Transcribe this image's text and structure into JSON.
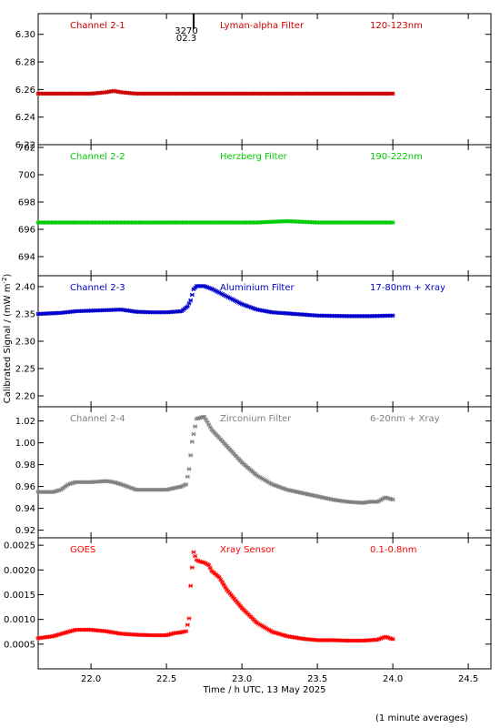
{
  "chart_data": [
    {
      "type": "scatter",
      "labels": {
        "channel": "Channel 2-1",
        "filter": "Lyman-alpha Filter",
        "range": "120-123nm"
      },
      "color": "#cc0000",
      "ylim": [
        6.22,
        6.315
      ],
      "yticks": [
        "6.22",
        "6.24",
        "6.26",
        "6.28",
        "6.30"
      ],
      "annotation": {
        "x": 22.68,
        "line1": "3270",
        "line2": "02.3"
      },
      "series": [
        {
          "x": [
            21.65,
            21.8,
            22.0,
            22.1,
            22.15,
            22.2,
            22.3,
            22.5,
            22.7,
            22.9,
            23.1,
            23.3,
            23.5,
            23.7,
            23.85,
            24.0
          ],
          "values": [
            6.257,
            6.257,
            6.257,
            6.258,
            6.259,
            6.258,
            6.257,
            6.257,
            6.257,
            6.257,
            6.257,
            6.257,
            6.257,
            6.257,
            6.257,
            6.257
          ]
        }
      ]
    },
    {
      "type": "scatter",
      "labels": {
        "channel": "Channel 2-2",
        "filter": "Herzberg Filter",
        "range": "190-222nm"
      },
      "color": "#00cc00",
      "ylim": [
        692.6,
        702.2
      ],
      "yticks": [
        "694",
        "696",
        "698",
        "700",
        "702"
      ],
      "series": [
        {
          "x": [
            21.65,
            21.9,
            22.2,
            22.5,
            22.7,
            22.9,
            23.1,
            23.3,
            23.5,
            23.7,
            23.85,
            24.0
          ],
          "values": [
            696.5,
            696.5,
            696.5,
            696.5,
            696.5,
            696.5,
            696.5,
            696.6,
            696.5,
            696.5,
            696.5,
            696.5
          ]
        }
      ]
    },
    {
      "type": "scatter",
      "labels": {
        "channel": "Channel 2-3",
        "filter": "Aluminium Filter",
        "range": "17-80nm + Xray"
      },
      "color": "#0000cc",
      "ylim": [
        2.18,
        2.42
      ],
      "yticks": [
        "2.20",
        "2.25",
        "2.30",
        "2.35",
        "2.40"
      ],
      "series": [
        {
          "x": [
            21.65,
            21.8,
            21.9,
            22.0,
            22.1,
            22.2,
            22.3,
            22.4,
            22.5,
            22.6,
            22.64,
            22.66,
            22.68,
            22.7,
            22.75,
            22.8,
            22.9,
            23.0,
            23.1,
            23.2,
            23.3,
            23.5,
            23.7,
            23.85,
            24.0
          ],
          "values": [
            2.35,
            2.352,
            2.355,
            2.356,
            2.357,
            2.358,
            2.354,
            2.353,
            2.353,
            2.355,
            2.364,
            2.375,
            2.395,
            2.401,
            2.401,
            2.396,
            2.382,
            2.368,
            2.358,
            2.353,
            2.351,
            2.347,
            2.346,
            2.346,
            2.347
          ]
        }
      ]
    },
    {
      "type": "scatter",
      "labels": {
        "channel": "Channel 2-4",
        "filter": "Zirconium Filter",
        "range": "6-20nm + Xray"
      },
      "color": "#808080",
      "ylim": [
        0.913,
        1.033
      ],
      "yticks": [
        "0.92",
        "0.94",
        "0.96",
        "0.98",
        "1.00",
        "1.02"
      ],
      "series": [
        {
          "x": [
            21.65,
            21.75,
            21.8,
            21.85,
            21.9,
            22.0,
            22.1,
            22.15,
            22.2,
            22.3,
            22.4,
            22.5,
            22.6,
            22.63,
            22.65,
            22.67,
            22.7,
            22.75,
            22.8,
            22.9,
            23.0,
            23.1,
            23.2,
            23.3,
            23.5,
            23.6,
            23.7,
            23.8,
            23.85,
            23.9,
            23.95,
            24.0
          ],
          "values": [
            0.955,
            0.955,
            0.957,
            0.962,
            0.964,
            0.964,
            0.965,
            0.964,
            0.962,
            0.957,
            0.957,
            0.957,
            0.96,
            0.962,
            0.976,
            1.001,
            1.022,
            1.024,
            1.012,
            0.997,
            0.982,
            0.97,
            0.962,
            0.957,
            0.951,
            0.948,
            0.946,
            0.945,
            0.946,
            0.946,
            0.95,
            0.948
          ]
        }
      ]
    },
    {
      "type": "scatter",
      "labels": {
        "channel": "GOES",
        "filter": "Xray Sensor",
        "range": "0.1-0.8nm"
      },
      "color": "#ff0000",
      "ylim": [
        0.0,
        0.00265
      ],
      "yticks": [
        "0.0005",
        "0.0010",
        "0.0015",
        "0.0020",
        "0.0025"
      ],
      "series": [
        {
          "x": [
            21.65,
            21.75,
            21.85,
            21.9,
            22.0,
            22.1,
            22.2,
            22.3,
            22.4,
            22.5,
            22.55,
            22.6,
            22.63,
            22.65,
            22.66,
            22.67,
            22.68,
            22.7,
            22.72,
            22.75,
            22.78,
            22.8,
            22.85,
            22.9,
            23.0,
            23.1,
            23.2,
            23.3,
            23.4,
            23.5,
            23.6,
            23.7,
            23.8,
            23.9,
            23.95,
            24.0
          ],
          "values": [
            0.00062,
            0.00066,
            0.00075,
            0.00079,
            0.00079,
            0.00076,
            0.00071,
            0.00069,
            0.00068,
            0.00068,
            0.00072,
            0.00074,
            0.00076,
            0.00102,
            0.00168,
            0.00205,
            0.00236,
            0.0022,
            0.00217,
            0.00215,
            0.0021,
            0.00198,
            0.00185,
            0.0016,
            0.00123,
            0.00093,
            0.00075,
            0.00066,
            0.00061,
            0.00058,
            0.00058,
            0.00057,
            0.00057,
            0.00059,
            0.00065,
            0.0006
          ]
        }
      ]
    }
  ],
  "x_axis": {
    "xlim": [
      21.65,
      24.65
    ],
    "ticks": [
      "22.0",
      "22.5",
      "23.0",
      "23.5",
      "24.0",
      "24.5"
    ],
    "label": "Time / h UTC, 13 May 2025"
  },
  "y_axis_label": "Calibrated Signal / (mW m",
  "y_axis_label_sup": "-2",
  "y_axis_label_close": ")",
  "footnote": "(1 minute averages)"
}
